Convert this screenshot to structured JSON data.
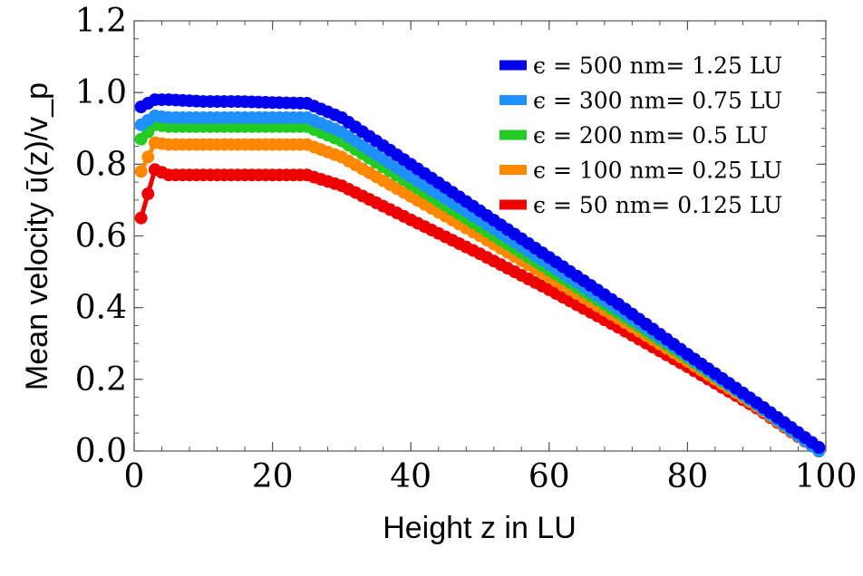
{
  "chart_data": {
    "type": "line",
    "xlabel": "Height z in LU",
    "ylabel": "Mean velocity ū(z)/v_p",
    "xlim": [
      0,
      100
    ],
    "ylim": [
      0,
      1.2
    ],
    "xticks": [
      "0",
      "20",
      "40",
      "60",
      "80",
      "100"
    ],
    "yticks": [
      "0.0",
      "0.2",
      "0.4",
      "0.6",
      "0.8",
      "1.0",
      "1.2"
    ],
    "legend_position": "top-right",
    "grid": false,
    "x": [
      1,
      3,
      5,
      10,
      15,
      20,
      25,
      30,
      40,
      50,
      60,
      70,
      80,
      90,
      99
    ],
    "series": [
      {
        "name": "ϵ = 500 nm= 1.25 LU",
        "color": "#0000ee",
        "values": [
          0.96,
          0.98,
          0.98,
          0.975,
          0.975,
          0.972,
          0.97,
          0.93,
          0.8,
          0.67,
          0.54,
          0.41,
          0.27,
          0.135,
          0.01
        ]
      },
      {
        "name": "ϵ = 300 nm= 0.75 LU",
        "color": "#1e90ff",
        "values": [
          0.91,
          0.935,
          0.93,
          0.93,
          0.93,
          0.93,
          0.93,
          0.89,
          0.765,
          0.645,
          0.52,
          0.395,
          0.265,
          0.13,
          0.0
        ]
      },
      {
        "name": "ϵ = 200 nm= 0.5 LU",
        "color": "#22cc22",
        "values": [
          0.87,
          0.91,
          0.905,
          0.905,
          0.905,
          0.905,
          0.905,
          0.865,
          0.745,
          0.625,
          0.505,
          0.385,
          0.26,
          0.13,
          0.0
        ]
      },
      {
        "name": "ϵ = 100 nm= 0.25 LU",
        "color": "#ff8800",
        "values": [
          0.78,
          0.86,
          0.855,
          0.855,
          0.855,
          0.855,
          0.855,
          0.82,
          0.71,
          0.6,
          0.485,
          0.37,
          0.25,
          0.125,
          0.0
        ]
      },
      {
        "name": "ϵ = 50 nm= 0.125 LU",
        "color": "#ee0000",
        "values": [
          0.65,
          0.785,
          0.77,
          0.77,
          0.77,
          0.77,
          0.77,
          0.74,
          0.645,
          0.55,
          0.45,
          0.345,
          0.235,
          0.12,
          0.0
        ]
      }
    ]
  }
}
